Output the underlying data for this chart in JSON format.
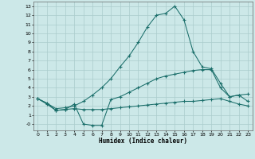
{
  "title": "",
  "xlabel": "Humidex (Indice chaleur)",
  "bg_color": "#cce8e8",
  "grid_color": "#aacccc",
  "line_color": "#1a6e6a",
  "xlim": [
    -0.5,
    23.5
  ],
  "ylim": [
    -0.7,
    13.5
  ],
  "xticks": [
    0,
    1,
    2,
    3,
    4,
    5,
    6,
    7,
    8,
    9,
    10,
    11,
    12,
    13,
    14,
    15,
    16,
    17,
    18,
    19,
    20,
    21,
    22,
    23
  ],
  "yticks": [
    0,
    1,
    2,
    3,
    4,
    5,
    6,
    7,
    8,
    9,
    10,
    11,
    12,
    13
  ],
  "ytick_labels": [
    "-0",
    "1",
    "2",
    "3",
    "4",
    "5",
    "6",
    "7",
    "8",
    "9",
    "10",
    "11",
    "12",
    "13"
  ],
  "line1_x": [
    0,
    1,
    2,
    3,
    4,
    5,
    6,
    7,
    8,
    9,
    10,
    11,
    12,
    13,
    14,
    15,
    16,
    17,
    18,
    19,
    20,
    21,
    22,
    23
  ],
  "line1_y": [
    2.8,
    2.3,
    1.7,
    1.8,
    2.0,
    2.5,
    3.2,
    4.0,
    5.0,
    6.3,
    7.5,
    9.0,
    10.7,
    12.0,
    12.2,
    13.0,
    11.5,
    8.0,
    6.3,
    6.1,
    4.5,
    3.0,
    3.2,
    3.3
  ],
  "line2_x": [
    0,
    1,
    2,
    3,
    4,
    5,
    6,
    7,
    8,
    9,
    10,
    11,
    12,
    13,
    14,
    15,
    16,
    17,
    18,
    19,
    20,
    21,
    22,
    23
  ],
  "line2_y": [
    2.8,
    2.3,
    1.5,
    1.6,
    2.2,
    0.0,
    -0.15,
    -0.15,
    2.7,
    3.0,
    3.5,
    4.0,
    4.5,
    5.0,
    5.3,
    5.5,
    5.7,
    5.9,
    6.0,
    6.0,
    4.0,
    3.0,
    3.2,
    2.5
  ],
  "line3_x": [
    0,
    1,
    2,
    3,
    4,
    5,
    6,
    7,
    8,
    9,
    10,
    11,
    12,
    13,
    14,
    15,
    16,
    17,
    18,
    19,
    20,
    21,
    22,
    23
  ],
  "line3_y": [
    2.8,
    2.2,
    1.5,
    1.6,
    1.7,
    1.6,
    1.6,
    1.6,
    1.7,
    1.8,
    1.9,
    2.0,
    2.1,
    2.2,
    2.3,
    2.4,
    2.5,
    2.5,
    2.6,
    2.7,
    2.8,
    2.5,
    2.2,
    2.0
  ]
}
